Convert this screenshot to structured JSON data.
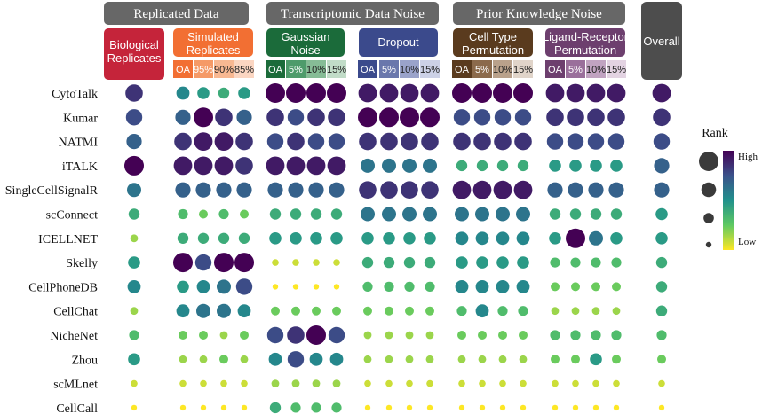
{
  "chart_data": {
    "type": "dot-matrix",
    "groups": [
      {
        "label": "Replicated Data",
        "subgroups": [
          {
            "label": "Biological Replicates",
            "lines": [
              "Biological",
              "Replicates"
            ],
            "color": "#c5243a",
            "cols": []
          },
          {
            "label": "Simulated Replicates",
            "lines": [
              "Simulated",
              "Replicates"
            ],
            "color": "#f26f33",
            "cols": [
              "OA",
              "95%",
              "90%",
              "85%"
            ],
            "colColors": [
              "#f26f33",
              "#f59a67",
              "#f8b892",
              "#fbd6c2"
            ]
          }
        ]
      },
      {
        "label": "Transcriptomic Data Noise",
        "subgroups": [
          {
            "label": "Gaussian Noise",
            "lines": [
              "Gaussian",
              "Noise"
            ],
            "color": "#1b6b3a",
            "cols": [
              "OA",
              "5%",
              "10%",
              "15%"
            ],
            "colColors": [
              "#1b6b3a",
              "#4e9b6b",
              "#86bc96",
              "#c1dcc8"
            ]
          },
          {
            "label": "Dropout",
            "lines": [
              "Dropout"
            ],
            "color": "#3b4a8c",
            "cols": [
              "OA",
              "5%",
              "10%",
              "15%"
            ],
            "colColors": [
              "#3b4a8c",
              "#6a77ac",
              "#9aa3ca",
              "#ccd1e6"
            ]
          }
        ]
      },
      {
        "label": "Prior Knowledge Noise",
        "subgroups": [
          {
            "label": "Cell Type Permutation",
            "lines": [
              "Cell Type",
              "Permutation"
            ],
            "color": "#5a3b1e",
            "cols": [
              "OA",
              "5%",
              "10%",
              "15%"
            ],
            "colColors": [
              "#5a3b1e",
              "#8b6a4c",
              "#b9a18b",
              "#e0d4c9"
            ]
          },
          {
            "label": "Ligand-Receptor Permutation",
            "lines": [
              "Ligand-Receptor",
              "Permutation"
            ],
            "color": "#6d3f6e",
            "cols": [
              "OA",
              "5%",
              "10%",
              "15%"
            ],
            "colColors": [
              "#6d3f6e",
              "#9a6f9b",
              "#c1a3c1",
              "#e3d3e2"
            ]
          }
        ]
      }
    ],
    "overall_label": "Overall",
    "methods": [
      "CytoTalk",
      "Kumar",
      "NATMI",
      "iTALK",
      "SingleCellSignalR",
      "scConnect",
      "ICELLNET",
      "Skelly",
      "CellPhoneDB",
      "CellChat",
      "NicheNet",
      "Zhou",
      "scMLnet",
      "CellCall"
    ],
    "rank_scale": {
      "title": "Rank",
      "high_label": "High",
      "low_label": "Low",
      "min": 1,
      "max": 14,
      "colors": [
        "#440154",
        "#3b528b",
        "#21918c",
        "#5ec962",
        "#fde725"
      ]
    },
    "ranks": {
      "bio": [
        3,
        4,
        5,
        1,
        6,
        9,
        12,
        8,
        7,
        12,
        10,
        8,
        13,
        14
      ],
      "sim": [
        [
          7,
          8,
          9,
          8
        ],
        [
          5,
          1,
          3,
          5
        ],
        [
          3,
          2,
          2,
          3
        ],
        [
          2,
          2,
          2,
          3
        ],
        [
          5,
          5,
          5,
          5
        ],
        [
          10,
          11,
          10,
          11
        ],
        [
          9,
          9,
          9,
          9
        ],
        [
          1,
          4,
          1,
          1
        ],
        [
          8,
          7,
          6,
          4
        ],
        [
          7,
          6,
          6,
          7
        ],
        [
          11,
          11,
          12,
          11
        ],
        [
          12,
          12,
          11,
          12
        ],
        [
          13,
          13,
          13,
          13
        ],
        [
          14,
          14,
          14,
          14
        ]
      ],
      "gauss": [
        [
          1,
          1,
          1,
          1
        ],
        [
          3,
          4,
          3,
          3
        ],
        [
          4,
          3,
          4,
          4
        ],
        [
          2,
          2,
          2,
          2
        ],
        [
          5,
          5,
          5,
          5
        ],
        [
          9,
          9,
          9,
          9
        ],
        [
          8,
          8,
          8,
          8
        ],
        [
          13,
          13,
          13,
          13
        ],
        [
          14,
          14,
          14,
          14
        ],
        [
          11,
          11,
          11,
          11
        ],
        [
          4,
          3,
          1,
          4
        ],
        [
          7,
          4,
          7,
          7
        ],
        [
          12,
          12,
          12,
          12
        ],
        [
          9,
          10,
          10,
          10
        ]
      ],
      "drop": [
        [
          2,
          2,
          2,
          2
        ],
        [
          1,
          1,
          1,
          1
        ],
        [
          3,
          3,
          3,
          3
        ],
        [
          6,
          6,
          6,
          6
        ],
        [
          3,
          3,
          3,
          3
        ],
        [
          6,
          6,
          6,
          6
        ],
        [
          8,
          8,
          8,
          8
        ],
        [
          9,
          9,
          9,
          9
        ],
        [
          10,
          10,
          10,
          10
        ],
        [
          11,
          11,
          11,
          11
        ],
        [
          12,
          12,
          12,
          12
        ],
        [
          12,
          12,
          12,
          12
        ],
        [
          13,
          13,
          13,
          13
        ],
        [
          14,
          14,
          14,
          14
        ]
      ],
      "celltype": [
        [
          1,
          1,
          1,
          1
        ],
        [
          4,
          4,
          4,
          4
        ],
        [
          3,
          3,
          3,
          3
        ],
        [
          9,
          9,
          9,
          9
        ],
        [
          2,
          2,
          2,
          2
        ],
        [
          6,
          6,
          6,
          6
        ],
        [
          7,
          7,
          7,
          7
        ],
        [
          8,
          8,
          8,
          8
        ],
        [
          7,
          7,
          7,
          7
        ],
        [
          10,
          7,
          10,
          10
        ],
        [
          11,
          11,
          11,
          11
        ],
        [
          12,
          12,
          12,
          12
        ],
        [
          13,
          13,
          13,
          13
        ],
        [
          14,
          14,
          14,
          14
        ]
      ],
      "lr": [
        [
          2,
          2,
          2,
          2
        ],
        [
          3,
          3,
          3,
          3
        ],
        [
          4,
          4,
          4,
          4
        ],
        [
          8,
          8,
          8,
          8
        ],
        [
          5,
          5,
          5,
          5
        ],
        [
          9,
          9,
          9,
          9
        ],
        [
          8,
          1,
          6,
          8
        ],
        [
          10,
          10,
          10,
          10
        ],
        [
          11,
          11,
          11,
          11
        ],
        [
          12,
          12,
          12,
          12
        ],
        [
          10,
          10,
          10,
          10
        ],
        [
          11,
          11,
          8,
          11
        ],
        [
          13,
          13,
          13,
          13
        ],
        [
          14,
          14,
          14,
          14
        ]
      ],
      "overall": [
        2,
        3,
        4,
        5,
        5,
        8,
        8,
        9,
        9,
        9,
        10,
        11,
        13,
        14
      ]
    }
  }
}
